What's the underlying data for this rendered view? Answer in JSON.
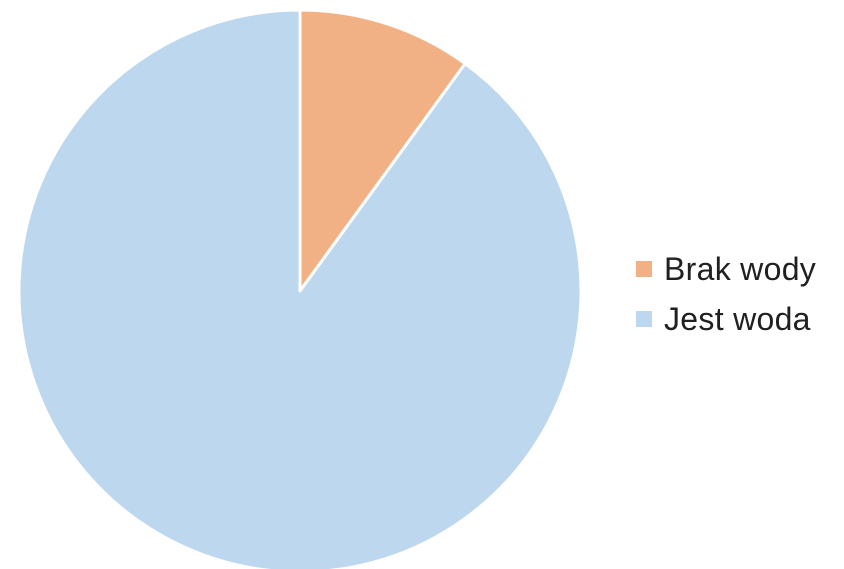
{
  "chart_data": {
    "type": "pie",
    "title": "",
    "legend_position": "right",
    "series": [
      {
        "name": "Brak wody",
        "value": 10,
        "color": "#F2B185"
      },
      {
        "name": "Jest woda",
        "value": 90,
        "color": "#BDD7EE"
      }
    ]
  }
}
